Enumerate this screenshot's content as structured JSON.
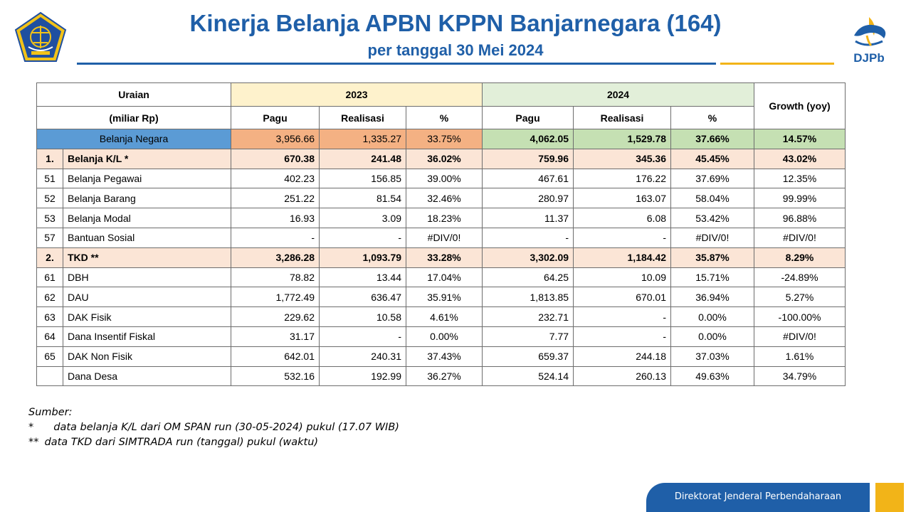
{
  "header": {
    "title": "Kinerja Belanja APBN KPPN Banjarnegara (164)",
    "subtitle": "per tanggal 30 Mei 2024",
    "brand": "DJPb"
  },
  "table": {
    "col_uraian": "Uraian",
    "col_unit": "(miliar Rp)",
    "year_2023": "2023",
    "year_2024": "2024",
    "col_growth": "Growth (yoy)",
    "sub_pagu": "Pagu",
    "sub_realisasi": "Realisasi",
    "sub_pct": "%",
    "total": {
      "label": "Belanja Negara",
      "pagu23": "3,956.66",
      "real23": "1,335.27",
      "pct23": "33.75%",
      "pagu24": "4,062.05",
      "real24": "1,529.78",
      "pct24": "37.66%",
      "growth": "14.57%"
    },
    "rows": [
      {
        "idx": "1.",
        "label": "Belanja K/L *",
        "pagu23": "670.38",
        "real23": "241.48",
        "pct23": "36.02%",
        "pagu24": "759.96",
        "real24": "345.36",
        "pct24": "45.45%",
        "growth": "43.02%",
        "subtotal": true
      },
      {
        "idx": "51",
        "label": "Belanja Pegawai",
        "pagu23": "402.23",
        "real23": "156.85",
        "pct23": "39.00%",
        "pagu24": "467.61",
        "real24": "176.22",
        "pct24": "37.69%",
        "growth": "12.35%"
      },
      {
        "idx": "52",
        "label": "Belanja Barang",
        "pagu23": "251.22",
        "real23": "81.54",
        "pct23": "32.46%",
        "pagu24": "280.97",
        "real24": "163.07",
        "pct24": "58.04%",
        "growth": "99.99%"
      },
      {
        "idx": "53",
        "label": "Belanja Modal",
        "pagu23": "16.93",
        "real23": "3.09",
        "pct23": "18.23%",
        "pagu24": "11.37",
        "real24": "6.08",
        "pct24": "53.42%",
        "growth": "96.88%"
      },
      {
        "idx": "57",
        "label": "Bantuan Sosial",
        "pagu23": "-",
        "real23": "-",
        "pct23": "#DIV/0!",
        "pagu24": "-",
        "real24": "-",
        "pct24": "#DIV/0!",
        "growth": "#DIV/0!"
      },
      {
        "idx": "2.",
        "label": "TKD **",
        "pagu23": "3,286.28",
        "real23": "1,093.79",
        "pct23": "33.28%",
        "pagu24": "3,302.09",
        "real24": "1,184.42",
        "pct24": "35.87%",
        "growth": "8.29%",
        "subtotal": true
      },
      {
        "idx": "61",
        "label": "DBH",
        "pagu23": "78.82",
        "real23": "13.44",
        "pct23": "17.04%",
        "pagu24": "64.25",
        "real24": "10.09",
        "pct24": "15.71%",
        "growth": "-24.89%"
      },
      {
        "idx": "62",
        "label": "DAU",
        "pagu23": "1,772.49",
        "real23": "636.47",
        "pct23": "35.91%",
        "pagu24": "1,813.85",
        "real24": "670.01",
        "pct24": "36.94%",
        "growth": "5.27%"
      },
      {
        "idx": "63",
        "label": "DAK Fisik",
        "pagu23": "229.62",
        "real23": "10.58",
        "pct23": "4.61%",
        "pagu24": "232.71",
        "real24": "-",
        "pct24": "0.00%",
        "growth": "-100.00%"
      },
      {
        "idx": "64",
        "label": "Dana Insentif Fiskal",
        "pagu23": "31.17",
        "real23": "-",
        "pct23": "0.00%",
        "pagu24": "7.77",
        "real24": "-",
        "pct24": "0.00%",
        "growth": "#DIV/0!"
      },
      {
        "idx": "65",
        "label": "DAK Non Fisik",
        "pagu23": "642.01",
        "real23": "240.31",
        "pct23": "37.43%",
        "pagu24": "659.37",
        "real24": "244.18",
        "pct24": "37.03%",
        "growth": "1.61%"
      },
      {
        "idx": "",
        "label": "Dana Desa",
        "pagu23": "532.16",
        "real23": "192.99",
        "pct23": "36.27%",
        "pagu24": "524.14",
        "real24": "260.13",
        "pct24": "49.63%",
        "growth": "34.79%"
      }
    ]
  },
  "notes": {
    "heading": "Sumber:",
    "note1_marker": "*",
    "note1_text": "data belanja K/L dari OM SPAN run (30-05-2024) pukul (17.07 WIB)",
    "note2_marker": "**",
    "note2_text": "data TKD dari SIMTRADA run (tanggal) pukul (waktu)"
  },
  "footer": {
    "text": "Direktorat Jenderal Perbendaharaan"
  },
  "colors": {
    "brand_blue": "#1f5fa8",
    "gold": "#f2b418",
    "header_2023": "#fef2cc",
    "header_2024": "#e2efd9",
    "total_label": "#5b9bd5",
    "total_2023": "#f4b183",
    "total_2024": "#c5e0b3",
    "subtotal_row": "#fbe5d6"
  },
  "icons": {
    "left_logo": "kemenkeu-emblem-icon",
    "right_logo": "djpb-logo-icon"
  }
}
